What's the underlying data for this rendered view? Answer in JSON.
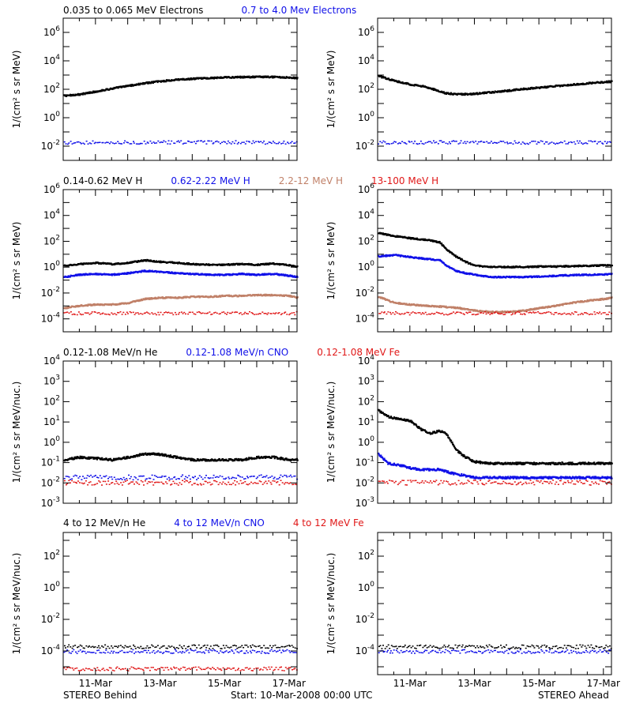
{
  "colors": {
    "black": "#000000",
    "blue": "#1010e8",
    "tan": "#c08068",
    "red": "#e01818"
  },
  "footer": {
    "left": "STEREO Behind",
    "center": "Start: 10-Mar-2008 00:00 UTC",
    "right": "STEREO Ahead"
  },
  "chart_data": [
    {
      "type": "scatter",
      "row": 1,
      "spacecraft": "STEREO Behind",
      "legend": [
        {
          "text": "0.035 to 0.065 MeV Electrons",
          "color": "black"
        },
        {
          "text": "0.7 to 4.0 Mev Electrons",
          "color": "blue"
        }
      ],
      "ylabel": "1/(cm² s sr MeV)",
      "yscale": "log",
      "ylim_exp": [
        -3,
        7
      ],
      "yticks_exp": [
        -2,
        0,
        2,
        4,
        6
      ],
      "xlim_days": [
        10,
        17.25
      ],
      "xticks": [
        {
          "day": 11,
          "label": "11-Mar"
        },
        {
          "day": 13,
          "label": "13-Mar"
        },
        {
          "day": 15,
          "label": "15-Mar"
        },
        {
          "day": 17,
          "label": "17-Mar"
        }
      ],
      "series": [
        {
          "color": "black",
          "x": [
            10.0,
            10.5,
            11.0,
            11.5,
            12.0,
            12.5,
            13.0,
            13.5,
            14.0,
            14.5,
            15.0,
            15.5,
            16.0,
            16.5,
            17.0,
            17.25
          ],
          "y": [
            40,
            50,
            80,
            130,
            200,
            300,
            420,
            530,
            620,
            700,
            780,
            820,
            850,
            840,
            780,
            700
          ]
        },
        {
          "color": "blue",
          "x": [
            10.0,
            17.25
          ],
          "y": [
            0.02,
            0.02
          ]
        }
      ]
    },
    {
      "type": "scatter",
      "row": 1,
      "spacecraft": "STEREO Ahead",
      "legend": [],
      "ylabel": "1/(cm² s sr MeV)",
      "yscale": "log",
      "ylim_exp": [
        -3,
        7
      ],
      "yticks_exp": [
        -2,
        0,
        2,
        4,
        6
      ],
      "xlim_days": [
        10,
        17.25
      ],
      "xticks": [
        {
          "day": 11,
          "label": "11-Mar"
        },
        {
          "day": 13,
          "label": "13-Mar"
        },
        {
          "day": 15,
          "label": "15-Mar"
        },
        {
          "day": 17,
          "label": "17-Mar"
        }
      ],
      "series": [
        {
          "color": "black",
          "x": [
            10.0,
            10.3,
            10.6,
            11.0,
            11.4,
            11.8,
            12.1,
            12.5,
            13.0,
            13.5,
            14.0,
            14.5,
            15.0,
            15.5,
            16.0,
            16.5,
            17.0,
            17.25
          ],
          "y": [
            1000,
            600,
            400,
            250,
            180,
            100,
            60,
            50,
            55,
            70,
            90,
            120,
            150,
            190,
            240,
            300,
            370,
            400
          ]
        },
        {
          "color": "blue",
          "x": [
            10.0,
            17.25
          ],
          "y": [
            0.02,
            0.02
          ]
        }
      ]
    },
    {
      "type": "scatter",
      "row": 2,
      "spacecraft": "STEREO Behind",
      "legend": [
        {
          "text": "0.14-0.62 MeV H",
          "color": "black"
        },
        {
          "text": "0.62-2.22 MeV H",
          "color": "blue"
        },
        {
          "text": "2.2-12 MeV H",
          "color": "tan"
        },
        {
          "text": "13-100 MeV H",
          "color": "red"
        }
      ],
      "ylabel": "1/(cm² s sr MeV)",
      "yscale": "log",
      "ylim_exp": [
        -5,
        6
      ],
      "yticks_exp": [
        -4,
        -2,
        0,
        2,
        4,
        6
      ],
      "xlim_days": [
        10,
        17.25
      ],
      "xticks": [
        {
          "day": 11,
          "label": "11-Mar"
        },
        {
          "day": 13,
          "label": "13-Mar"
        },
        {
          "day": 15,
          "label": "15-Mar"
        },
        {
          "day": 17,
          "label": "17-Mar"
        }
      ],
      "series": [
        {
          "color": "black",
          "x": [
            10.0,
            10.5,
            11.0,
            11.5,
            12.0,
            12.5,
            13.0,
            13.5,
            14.0,
            14.5,
            15.0,
            15.5,
            16.0,
            16.5,
            17.0,
            17.25
          ],
          "y": [
            1.5,
            2.0,
            2.5,
            2.0,
            2.5,
            4.0,
            3.0,
            2.5,
            2.0,
            1.8,
            1.8,
            2.0,
            1.8,
            2.2,
            1.6,
            1.2
          ]
        },
        {
          "color": "blue",
          "x": [
            10.0,
            10.5,
            11.0,
            11.5,
            12.0,
            12.5,
            13.0,
            13.5,
            14.0,
            14.5,
            15.0,
            15.5,
            16.0,
            16.5,
            17.0,
            17.25
          ],
          "y": [
            0.2,
            0.3,
            0.35,
            0.3,
            0.4,
            0.6,
            0.5,
            0.4,
            0.35,
            0.3,
            0.3,
            0.35,
            0.3,
            0.35,
            0.25,
            0.2
          ]
        },
        {
          "color": "tan",
          "x": [
            10.0,
            10.5,
            11.0,
            11.5,
            12.0,
            12.5,
            13.0,
            13.5,
            14.0,
            14.5,
            15.0,
            15.5,
            16.0,
            16.5,
            17.0,
            17.25
          ],
          "y": [
            0.0008,
            0.0012,
            0.0015,
            0.0015,
            0.002,
            0.004,
            0.005,
            0.005,
            0.006,
            0.006,
            0.007,
            0.007,
            0.008,
            0.008,
            0.007,
            0.005
          ]
        },
        {
          "color": "red",
          "x": [
            10.0,
            17.25
          ],
          "y": [
            0.0003,
            0.0003
          ]
        }
      ]
    },
    {
      "type": "scatter",
      "row": 2,
      "spacecraft": "STEREO Ahead",
      "legend": [],
      "ylabel": "1/(cm² s sr MeV)",
      "yscale": "log",
      "ylim_exp": [
        -5,
        6
      ],
      "yticks_exp": [
        -4,
        -2,
        0,
        2,
        4,
        6
      ],
      "xlim_days": [
        10,
        17.25
      ],
      "xticks": [
        {
          "day": 11,
          "label": "11-Mar"
        },
        {
          "day": 13,
          "label": "13-Mar"
        },
        {
          "day": 15,
          "label": "15-Mar"
        },
        {
          "day": 17,
          "label": "17-Mar"
        }
      ],
      "series": [
        {
          "color": "black",
          "x": [
            10.0,
            10.5,
            11.0,
            11.5,
            11.9,
            12.1,
            12.4,
            12.7,
            13.0,
            13.5,
            14.0,
            14.5,
            15.0,
            15.5,
            16.0,
            16.5,
            17.0,
            17.25
          ],
          "y": [
            500,
            300,
            200,
            150,
            100,
            30,
            8,
            3,
            1.5,
            1.2,
            1.2,
            1.2,
            1.3,
            1.3,
            1.4,
            1.5,
            1.6,
            1.7
          ]
        },
        {
          "color": "blue",
          "x": [
            10.0,
            10.5,
            11.0,
            11.5,
            11.9,
            12.1,
            12.4,
            12.7,
            13.0,
            13.5,
            14.0,
            14.5,
            15.0,
            15.5,
            16.0,
            16.5,
            17.0,
            17.25
          ],
          "y": [
            8,
            10,
            7,
            5,
            4,
            1.5,
            0.6,
            0.4,
            0.3,
            0.2,
            0.2,
            0.2,
            0.22,
            0.25,
            0.28,
            0.3,
            0.32,
            0.35
          ]
        },
        {
          "color": "tan",
          "x": [
            10.0,
            10.5,
            11.0,
            11.5,
            12.0,
            12.5,
            13.0,
            13.5,
            14.0,
            14.5,
            15.0,
            15.5,
            16.0,
            16.5,
            17.0,
            17.25
          ],
          "y": [
            0.006,
            0.002,
            0.0015,
            0.0012,
            0.001,
            0.0008,
            0.0005,
            0.0004,
            0.0004,
            0.0005,
            0.0008,
            0.0012,
            0.002,
            0.003,
            0.004,
            0.005
          ]
        },
        {
          "color": "red",
          "x": [
            10.0,
            17.25
          ],
          "y": [
            0.0003,
            0.0003
          ]
        }
      ]
    },
    {
      "type": "scatter",
      "row": 3,
      "spacecraft": "STEREO Behind",
      "legend": [
        {
          "text": "0.12-1.08 MeV/n He",
          "color": "black"
        },
        {
          "text": "0.12-1.08 MeV/n CNO",
          "color": "blue"
        },
        {
          "text": "0.12-1.08 MeV Fe",
          "color": "red"
        }
      ],
      "ylabel": "1/(cm² s sr MeV/nuc.)",
      "yscale": "log",
      "ylim_exp": [
        -3,
        4
      ],
      "yticks_exp": [
        -3,
        -2,
        -1,
        0,
        1,
        2,
        3,
        4
      ],
      "xlim_days": [
        10,
        17.25
      ],
      "xticks": [
        {
          "day": 11,
          "label": "11-Mar"
        },
        {
          "day": 13,
          "label": "13-Mar"
        },
        {
          "day": 15,
          "label": "15-Mar"
        },
        {
          "day": 17,
          "label": "17-Mar"
        }
      ],
      "series": [
        {
          "color": "black",
          "x": [
            10.0,
            10.5,
            11.0,
            11.5,
            12.0,
            12.5,
            13.0,
            13.5,
            14.0,
            14.5,
            15.0,
            15.5,
            16.0,
            16.5,
            17.0,
            17.25
          ],
          "y": [
            0.15,
            0.2,
            0.18,
            0.15,
            0.2,
            0.3,
            0.28,
            0.2,
            0.15,
            0.15,
            0.15,
            0.15,
            0.2,
            0.2,
            0.15,
            0.15
          ]
        },
        {
          "color": "blue",
          "x": [
            10.0,
            17.25
          ],
          "y": [
            0.02,
            0.02
          ]
        },
        {
          "color": "red",
          "x": [
            10.0,
            17.25
          ],
          "y": [
            0.011,
            0.011
          ]
        }
      ]
    },
    {
      "type": "scatter",
      "row": 3,
      "spacecraft": "STEREO Ahead",
      "legend": [],
      "ylabel": "1/(cm² s sr MeV/nuc.)",
      "yscale": "log",
      "ylim_exp": [
        -3,
        4
      ],
      "yticks_exp": [
        -3,
        -2,
        -1,
        0,
        1,
        2,
        3,
        4
      ],
      "xlim_days": [
        10,
        17.25
      ],
      "xticks": [
        {
          "day": 11,
          "label": "11-Mar"
        },
        {
          "day": 13,
          "label": "13-Mar"
        },
        {
          "day": 15,
          "label": "15-Mar"
        },
        {
          "day": 17,
          "label": "17-Mar"
        }
      ],
      "series": [
        {
          "color": "black",
          "x": [
            10.0,
            10.3,
            10.7,
            11.0,
            11.3,
            11.6,
            11.9,
            12.1,
            12.4,
            12.7,
            13.0,
            13.5,
            14.0,
            14.5,
            15.0,
            15.5,
            16.0,
            16.5,
            17.0,
            17.25
          ],
          "y": [
            40,
            20,
            15,
            12,
            5,
            3,
            4,
            3,
            0.5,
            0.2,
            0.12,
            0.1,
            0.1,
            0.1,
            0.1,
            0.1,
            0.1,
            0.1,
            0.1,
            0.1
          ]
        },
        {
          "color": "blue",
          "x": [
            10.0,
            10.3,
            10.7,
            11.0,
            11.3,
            11.6,
            11.9,
            12.1,
            12.4,
            12.7,
            13.0,
            13.5,
            14.0,
            15.0,
            16.0,
            17.25
          ],
          "y": [
            0.3,
            0.1,
            0.08,
            0.06,
            0.05,
            0.05,
            0.05,
            0.04,
            0.03,
            0.025,
            0.02,
            0.02,
            0.02,
            0.02,
            0.02,
            0.02
          ]
        },
        {
          "color": "red",
          "x": [
            10.0,
            17.25
          ],
          "y": [
            0.011,
            0.011
          ]
        }
      ]
    },
    {
      "type": "scatter",
      "row": 4,
      "spacecraft": "STEREO Behind",
      "legend": [
        {
          "text": "4 to 12 MeV/n He",
          "color": "black"
        },
        {
          "text": "4 to 12 MeV/n CNO",
          "color": "blue"
        },
        {
          "text": "4 to 12 MeV Fe",
          "color": "red"
        }
      ],
      "ylabel": "1/(cm² s sr MeV/nuc.)",
      "yscale": "log",
      "ylim_exp": [
        -5.5,
        3.5
      ],
      "yticks_exp": [
        -4,
        -2,
        0,
        2
      ],
      "xlim_days": [
        10,
        17.25
      ],
      "xticks": [
        {
          "day": 11,
          "label": "11-Mar"
        },
        {
          "day": 13,
          "label": "13-Mar"
        },
        {
          "day": 15,
          "label": "15-Mar"
        },
        {
          "day": 17,
          "label": "17-Mar"
        }
      ],
      "series": [
        {
          "color": "black",
          "x": [
            10.0,
            17.25
          ],
          "y": [
            0.0002,
            0.0002
          ]
        },
        {
          "color": "blue",
          "x": [
            10.0,
            17.25
          ],
          "y": [
            0.0001,
            0.0001
          ]
        },
        {
          "color": "red",
          "x": [
            10.0,
            17.25
          ],
          "y": [
            8e-06,
            8e-06
          ]
        }
      ]
    },
    {
      "type": "scatter",
      "row": 4,
      "spacecraft": "STEREO Ahead",
      "legend": [],
      "ylabel": "1/(cm² s sr MeV/nuc.)",
      "yscale": "log",
      "ylim_exp": [
        -5.5,
        3.5
      ],
      "yticks_exp": [
        -4,
        -2,
        0,
        2
      ],
      "xlim_days": [
        10,
        17.25
      ],
      "xticks": [
        {
          "day": 11,
          "label": "11-Mar"
        },
        {
          "day": 13,
          "label": "13-Mar"
        },
        {
          "day": 15,
          "label": "15-Mar"
        },
        {
          "day": 17,
          "label": "17-Mar"
        }
      ],
      "series": [
        {
          "color": "black",
          "x": [
            10.0,
            17.25
          ],
          "y": [
            0.0002,
            0.0002
          ]
        },
        {
          "color": "blue",
          "x": [
            10.0,
            17.25
          ],
          "y": [
            0.0001,
            0.0001
          ]
        }
      ]
    }
  ]
}
